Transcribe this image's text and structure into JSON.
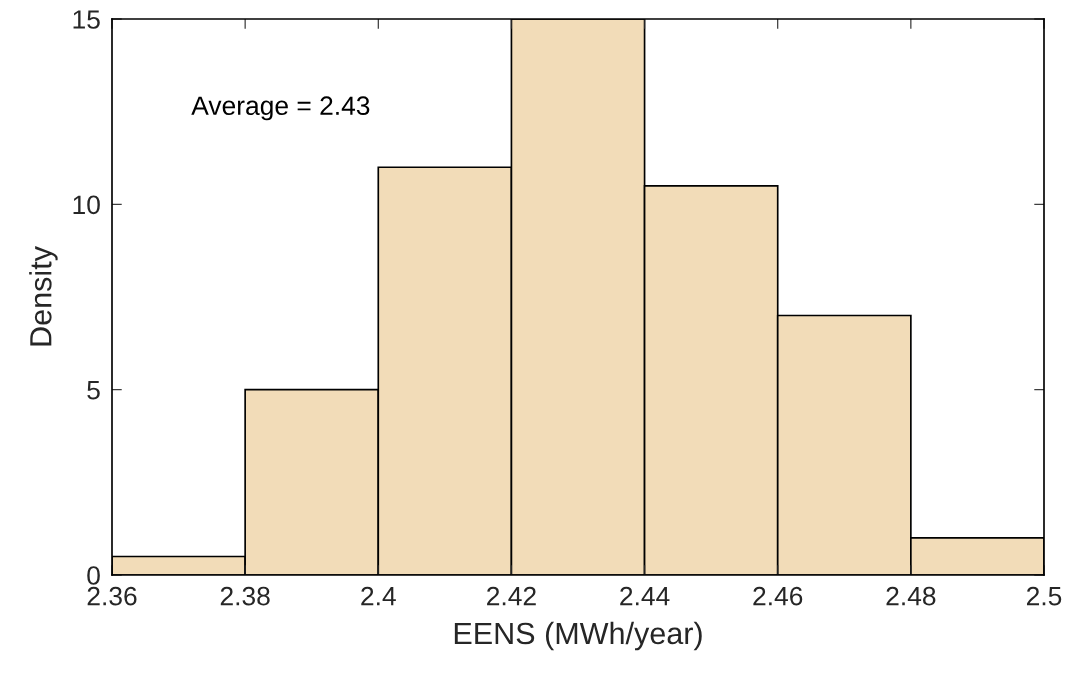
{
  "chart_data": {
    "type": "histogram",
    "xlabel": "EENS (MWh/year)",
    "ylabel": "Density",
    "annotations": [
      "Average = 2.43"
    ],
    "bins": [
      2.36,
      2.38,
      2.4,
      2.42,
      2.44,
      2.46,
      2.48,
      2.5
    ],
    "values": [
      0.5,
      5,
      11,
      15,
      10.5,
      7,
      1
    ],
    "color": "#f2dcb8",
    "xlim": [
      2.36,
      2.5
    ],
    "xticks": [
      2.36,
      2.38,
      2.4,
      2.42,
      2.44,
      2.46,
      2.48,
      2.5
    ],
    "ylim": [
      0,
      15
    ],
    "yticks": [
      0,
      5,
      10,
      15
    ],
    "grid": false
  }
}
